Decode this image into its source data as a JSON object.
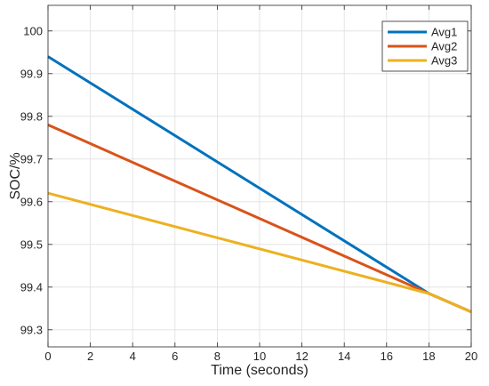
{
  "chart_data": {
    "type": "line",
    "title": "",
    "xlabel": "Time (seconds)",
    "ylabel": "SOC/%",
    "xlim": [
      0,
      20
    ],
    "ylim": [
      99.26,
      100.06
    ],
    "x_ticks": [
      0,
      2,
      4,
      6,
      8,
      10,
      12,
      14,
      16,
      18,
      20
    ],
    "x_tick_labels": [
      "0",
      "2",
      "4",
      "6",
      "8",
      "10",
      "12",
      "14",
      "16",
      "18",
      "20"
    ],
    "y_ticks": [
      99.3,
      99.4,
      99.5,
      99.6,
      99.7,
      99.8,
      99.9,
      100
    ],
    "y_tick_labels": [
      "99.3",
      "99.4",
      "99.5",
      "99.6",
      "99.7",
      "99.8",
      "99.9",
      "100"
    ],
    "grid": true,
    "legend_position": "top-right",
    "series": [
      {
        "name": "Avg1",
        "color": "#0072BD",
        "x": [
          0,
          18,
          20
        ],
        "y": [
          99.94,
          99.385,
          99.342
        ]
      },
      {
        "name": "Avg2",
        "color": "#D95319",
        "x": [
          0,
          18,
          20
        ],
        "y": [
          99.78,
          99.385,
          99.342
        ]
      },
      {
        "name": "Avg3",
        "color": "#EDB120",
        "x": [
          0,
          18,
          20
        ],
        "y": [
          99.62,
          99.385,
          99.342
        ]
      }
    ]
  }
}
